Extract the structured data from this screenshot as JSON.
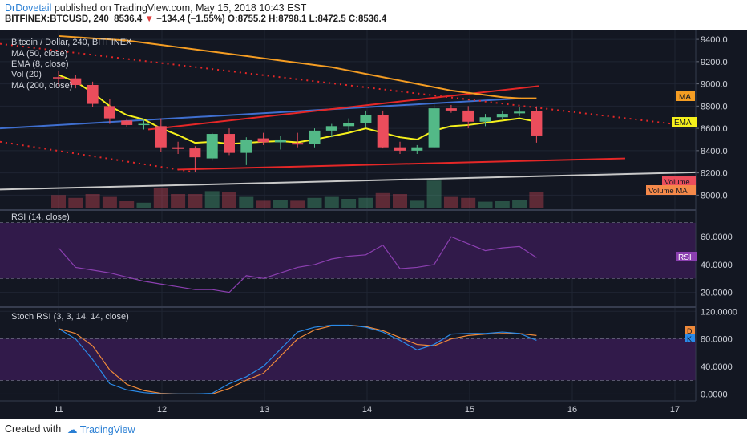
{
  "header": {
    "author": "DrDovetail",
    "published_text": " published on TradingView.com, May 15, 2018 10:43 EST",
    "symbol_line": "BITFINEX:BTCUSD, 240",
    "last": "8536.4",
    "change": "−134.4 (−1.55%)",
    "ohlc": "O:8755.2 H:8798.1 L:8472.5 C:8536.4"
  },
  "footer": {
    "created_with": "Created with",
    "brand": "TradingView"
  },
  "legend": {
    "title": "Bitcoin / Dollar, 240, BITFINEX",
    "items": [
      "MA (50, close)",
      "EMA (8, close)",
      "Vol (20)",
      "MA (200, close)"
    ]
  },
  "tags": {
    "ma": "MA",
    "ema": "EMA",
    "volume": "Volume",
    "volume_ma": "Volume MA",
    "rsi": "RSI",
    "d": "D",
    "k": "K"
  },
  "panes": {
    "rsi_title": "RSI (14, close)",
    "stoch_title": "Stoch RSI (3, 3, 14, 14, close)"
  },
  "colors": {
    "bg": "#131722",
    "grid": "#1f2533",
    "up": "#53b987",
    "down": "#eb4d5c",
    "ema": "#f5f01c",
    "ma50": "#f59d23",
    "ma200": "#c8c8c8",
    "blue_line": "#3f6fd0",
    "red_line": "#e52727",
    "rsi_band": "#311a4a",
    "rsi_line": "#8b3fb0",
    "stoch_k": "#2a8ae8",
    "stoch_d": "#f08a3a",
    "ma_tag": "#f59d23",
    "ema_tag": "#f5f01c"
  },
  "chart_data": [
    {
      "type": "candlestick",
      "title": "Bitcoin / Dollar, 240, BITFINEX",
      "x_ticks": [
        "11",
        "12",
        "13",
        "14",
        "15",
        "16",
        "17"
      ],
      "y_ticks": [
        "9400.0",
        "9200.0",
        "9000.0",
        "8800.0",
        "8600.0",
        "8400.0",
        "8200.0",
        "8000.0"
      ],
      "ylim": [
        7880,
        9480
      ],
      "candles": [
        {
          "i": 0,
          "o": 9060,
          "h": 9120,
          "l": 8980,
          "c": 9050
        },
        {
          "i": 1,
          "o": 9050,
          "h": 9080,
          "l": 8960,
          "c": 8990
        },
        {
          "i": 2,
          "o": 8990,
          "h": 9020,
          "l": 8790,
          "c": 8820
        },
        {
          "i": 3,
          "o": 8800,
          "h": 8860,
          "l": 8640,
          "c": 8690
        },
        {
          "i": 4,
          "o": 8670,
          "h": 8690,
          "l": 8610,
          "c": 8630
        },
        {
          "i": 5,
          "o": 8630,
          "h": 8680,
          "l": 8590,
          "c": 8640
        },
        {
          "i": 6,
          "o": 8620,
          "h": 8690,
          "l": 8390,
          "c": 8430
        },
        {
          "i": 7,
          "o": 8430,
          "h": 8480,
          "l": 8370,
          "c": 8415
        },
        {
          "i": 8,
          "o": 8420,
          "h": 8440,
          "l": 8210,
          "c": 8340
        },
        {
          "i": 9,
          "o": 8330,
          "h": 8560,
          "l": 8310,
          "c": 8550
        },
        {
          "i": 10,
          "o": 8550,
          "h": 8600,
          "l": 8360,
          "c": 8380
        },
        {
          "i": 11,
          "o": 8380,
          "h": 8520,
          "l": 8270,
          "c": 8500
        },
        {
          "i": 12,
          "o": 8510,
          "h": 8560,
          "l": 8450,
          "c": 8475
        },
        {
          "i": 13,
          "o": 8475,
          "h": 8530,
          "l": 8410,
          "c": 8500
        },
        {
          "i": 14,
          "o": 8470,
          "h": 8560,
          "l": 8430,
          "c": 8455
        },
        {
          "i": 15,
          "o": 8460,
          "h": 8600,
          "l": 8430,
          "c": 8580
        },
        {
          "i": 16,
          "o": 8580,
          "h": 8640,
          "l": 8520,
          "c": 8620
        },
        {
          "i": 17,
          "o": 8620,
          "h": 8690,
          "l": 8570,
          "c": 8650
        },
        {
          "i": 18,
          "o": 8650,
          "h": 8760,
          "l": 8610,
          "c": 8720
        },
        {
          "i": 19,
          "o": 8720,
          "h": 8760,
          "l": 8420,
          "c": 8430
        },
        {
          "i": 20,
          "o": 8430,
          "h": 8480,
          "l": 8370,
          "c": 8400
        },
        {
          "i": 21,
          "o": 8400,
          "h": 8450,
          "l": 8370,
          "c": 8430
        },
        {
          "i": 22,
          "o": 8430,
          "h": 8820,
          "l": 8420,
          "c": 8780
        },
        {
          "i": 23,
          "o": 8780,
          "h": 8810,
          "l": 8740,
          "c": 8760
        },
        {
          "i": 24,
          "o": 8760,
          "h": 8800,
          "l": 8600,
          "c": 8660
        },
        {
          "i": 25,
          "o": 8660,
          "h": 8730,
          "l": 8620,
          "c": 8700
        },
        {
          "i": 26,
          "o": 8700,
          "h": 8760,
          "l": 8680,
          "c": 8730
        },
        {
          "i": 27,
          "o": 8735,
          "h": 8790,
          "l": 8710,
          "c": 8750
        },
        {
          "i": 28,
          "o": 8755,
          "h": 8798,
          "l": 8472,
          "c": 8536
        }
      ],
      "volume": [
        0.28,
        0.22,
        0.3,
        0.24,
        0.15,
        0.12,
        0.42,
        0.3,
        0.3,
        0.36,
        0.34,
        0.24,
        0.16,
        0.18,
        0.16,
        0.22,
        0.24,
        0.2,
        0.22,
        0.32,
        0.3,
        0.16,
        0.58,
        0.24,
        0.22,
        0.14,
        0.15,
        0.18,
        0.34
      ],
      "ema8": [
        9080,
        9020,
        8920,
        8800,
        8720,
        8680,
        8600,
        8540,
        8470,
        8480,
        8460,
        8470,
        8480,
        8485,
        8475,
        8500,
        8530,
        8560,
        8600,
        8560,
        8520,
        8500,
        8580,
        8620,
        8630,
        8650,
        8670,
        8690,
        8660
      ],
      "ma50": [
        9430,
        9420,
        9410,
        9400,
        9390,
        9370,
        9350,
        9330,
        9310,
        9290,
        9270,
        9250,
        9230,
        9210,
        9190,
        9170,
        9150,
        9120,
        9090,
        9060,
        9030,
        9000,
        8970,
        8940,
        8920,
        8900,
        8880,
        8870,
        8870
      ],
      "ma200": [
        8050,
        8055,
        8060,
        8065,
        8070,
        8075,
        8080,
        8085,
        8090,
        8095,
        8100,
        8105,
        8110,
        8115,
        8120,
        8125,
        8130,
        8135,
        8140,
        8145,
        8150,
        8155,
        8160,
        8165,
        8170,
        8175,
        8180,
        8185,
        8190
      ]
    },
    {
      "type": "line",
      "title": "RSI (14, close)",
      "y_ticks": [
        "60.0000",
        "40.0000",
        "20.0000"
      ],
      "ylim": [
        10,
        78
      ],
      "bands": [
        30,
        70
      ],
      "values": [
        52,
        38,
        36,
        34,
        31,
        28,
        26,
        24,
        22,
        22,
        20,
        32,
        30,
        34,
        38,
        40,
        44,
        46,
        47,
        54,
        37,
        38,
        40,
        60,
        55,
        50,
        52,
        53,
        45
      ]
    },
    {
      "type": "line",
      "title": "Stoch RSI (3, 3, 14, 14, close)",
      "y_ticks": [
        "120.0000",
        "80.0000",
        "40.0000",
        "0.0000"
      ],
      "ylim": [
        -10,
        125
      ],
      "bands": [
        20,
        80
      ],
      "k": [
        95,
        80,
        50,
        15,
        6,
        2,
        0,
        0,
        0,
        1,
        15,
        25,
        40,
        65,
        90,
        97,
        100,
        100,
        97,
        90,
        78,
        64,
        72,
        87,
        88,
        88,
        90,
        88,
        78
      ],
      "d": [
        95,
        88,
        70,
        35,
        14,
        5,
        1,
        0,
        0,
        0,
        8,
        20,
        30,
        55,
        80,
        93,
        99,
        100,
        98,
        92,
        82,
        72,
        70,
        80,
        85,
        87,
        88,
        88,
        85
      ]
    }
  ]
}
